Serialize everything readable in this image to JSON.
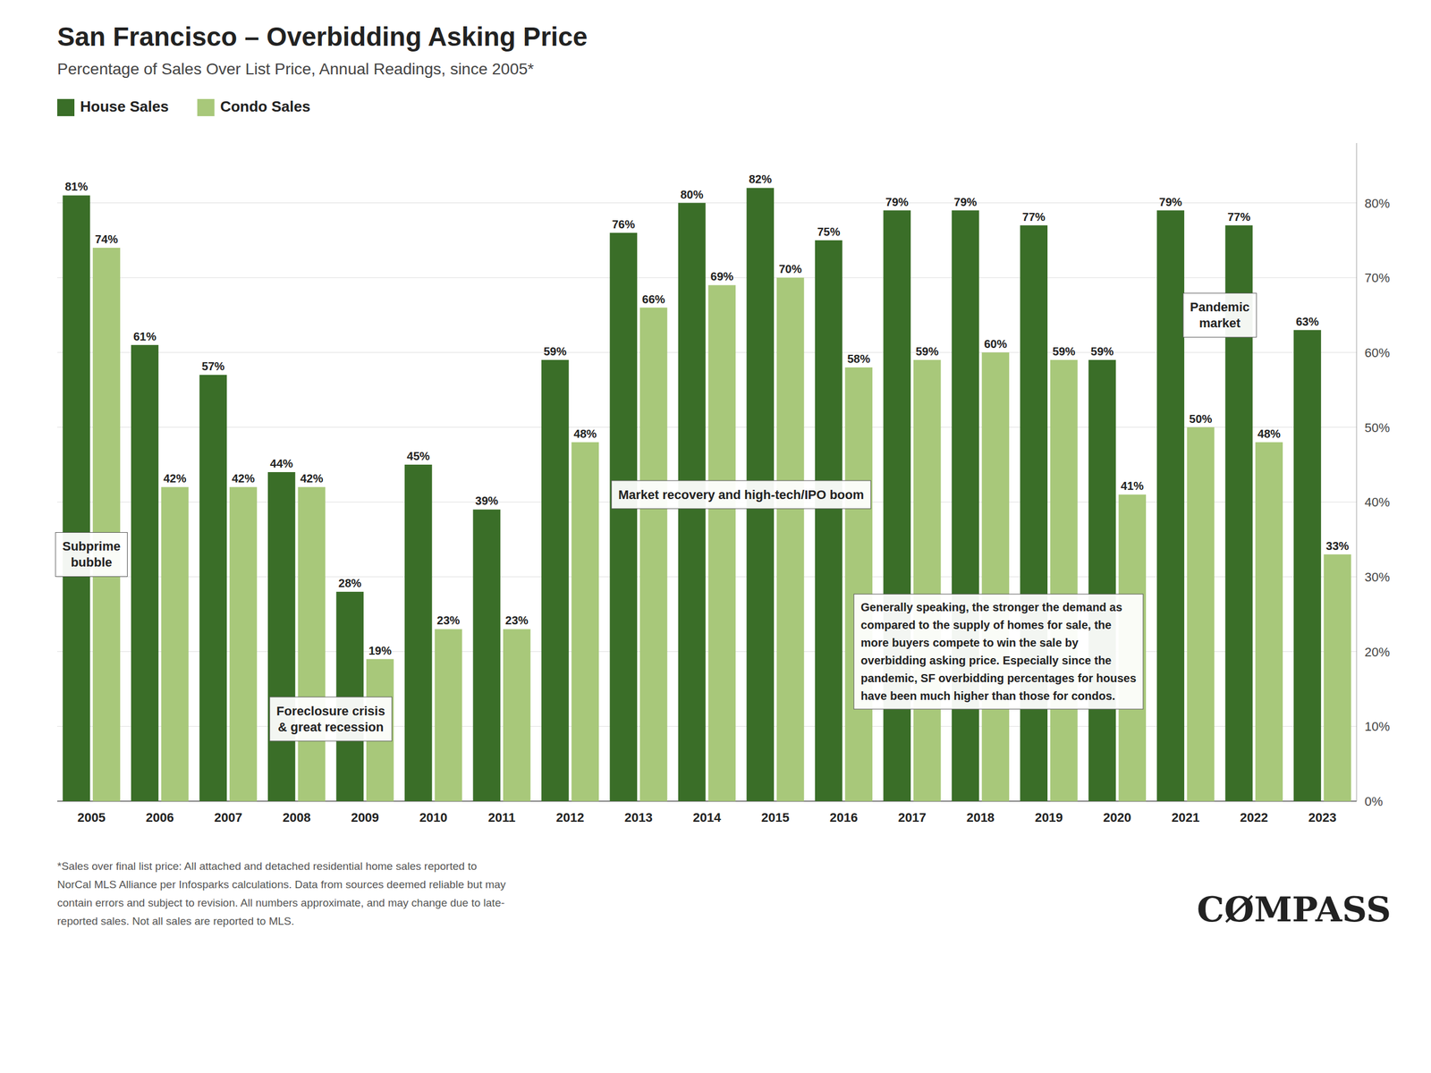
{
  "chart_data": {
    "type": "bar",
    "title": "San Francisco – Overbidding Asking Price",
    "subtitle": "Percentage of Sales Over List Price, Annual Readings, since 2005*",
    "categories": [
      "2005",
      "2006",
      "2007",
      "2008",
      "2009",
      "2010",
      "2011",
      "2012",
      "2013",
      "2014",
      "2015",
      "2016",
      "2017",
      "2018",
      "2019",
      "2020",
      "2021",
      "2022",
      "2023"
    ],
    "series": [
      {
        "name": "House Sales",
        "color": "#3a6e28",
        "values": [
          81,
          61,
          57,
          44,
          28,
          45,
          39,
          59,
          76,
          80,
          82,
          75,
          79,
          79,
          77,
          59,
          79,
          77,
          63
        ],
        "value_labels": [
          "81%",
          "61%",
          "57%",
          "44%",
          "28%",
          "45%",
          "39%",
          "59%",
          "76%",
          "80%",
          "82%",
          "75%",
          "79%",
          "79%",
          "77%",
          "59%",
          "79%",
          "77%",
          "63%"
        ]
      },
      {
        "name": "Condo Sales",
        "color": "#a8c87a",
        "values": [
          74,
          42,
          42,
          42,
          19,
          23,
          23,
          48,
          66,
          69,
          70,
          58,
          59,
          60,
          59,
          41,
          50,
          48,
          33
        ],
        "value_labels": [
          "74%",
          "42%",
          "42%",
          "42%",
          "19%",
          "23%",
          "23%",
          "48%",
          "66%",
          "69%",
          "70%",
          "58%",
          "59%",
          "60%",
          "59%",
          "41%",
          "50%",
          "48%",
          "33%"
        ]
      }
    ],
    "ylim": [
      0,
      88
    ],
    "yticks": [
      {
        "value": 0,
        "label": "0%"
      },
      {
        "value": 10,
        "label": "10%"
      },
      {
        "value": 20,
        "label": "20%"
      },
      {
        "value": 30,
        "label": "30%"
      },
      {
        "value": 40,
        "label": "40%"
      },
      {
        "value": 50,
        "label": "50%"
      },
      {
        "value": 60,
        "label": "60%"
      },
      {
        "value": 70,
        "label": "70%"
      },
      {
        "value": 80,
        "label": "80%"
      }
    ],
    "grid": true,
    "legend": "upper left",
    "data_labels": true,
    "annotations": [
      "Subprime\nbubble",
      "Foreclosure crisis\n& great recession",
      "Market recovery and high-tech/IPO boom",
      "Pandemic\nmarket",
      "Generally speaking, the stronger the demand as\ncompared to the supply of homes for sale, the\nmore buyers compete to win the sale by\noverbidding asking price. Especially since the\npandemic, SF overbidding percentages for houses\nhave been much higher than those for condos."
    ],
    "footnotes": [
      "*Sales over final list price: All attached and detached residential home sales reported to",
      "NorCal MLS Alliance per Infosparks calculations. Data from sources deemed reliable but may",
      "contain errors and subject to revision. All numbers approximate, and may change due to late-",
      "reported sales. Not all sales are reported to MLS."
    ],
    "logo": "CØMPASS"
  }
}
